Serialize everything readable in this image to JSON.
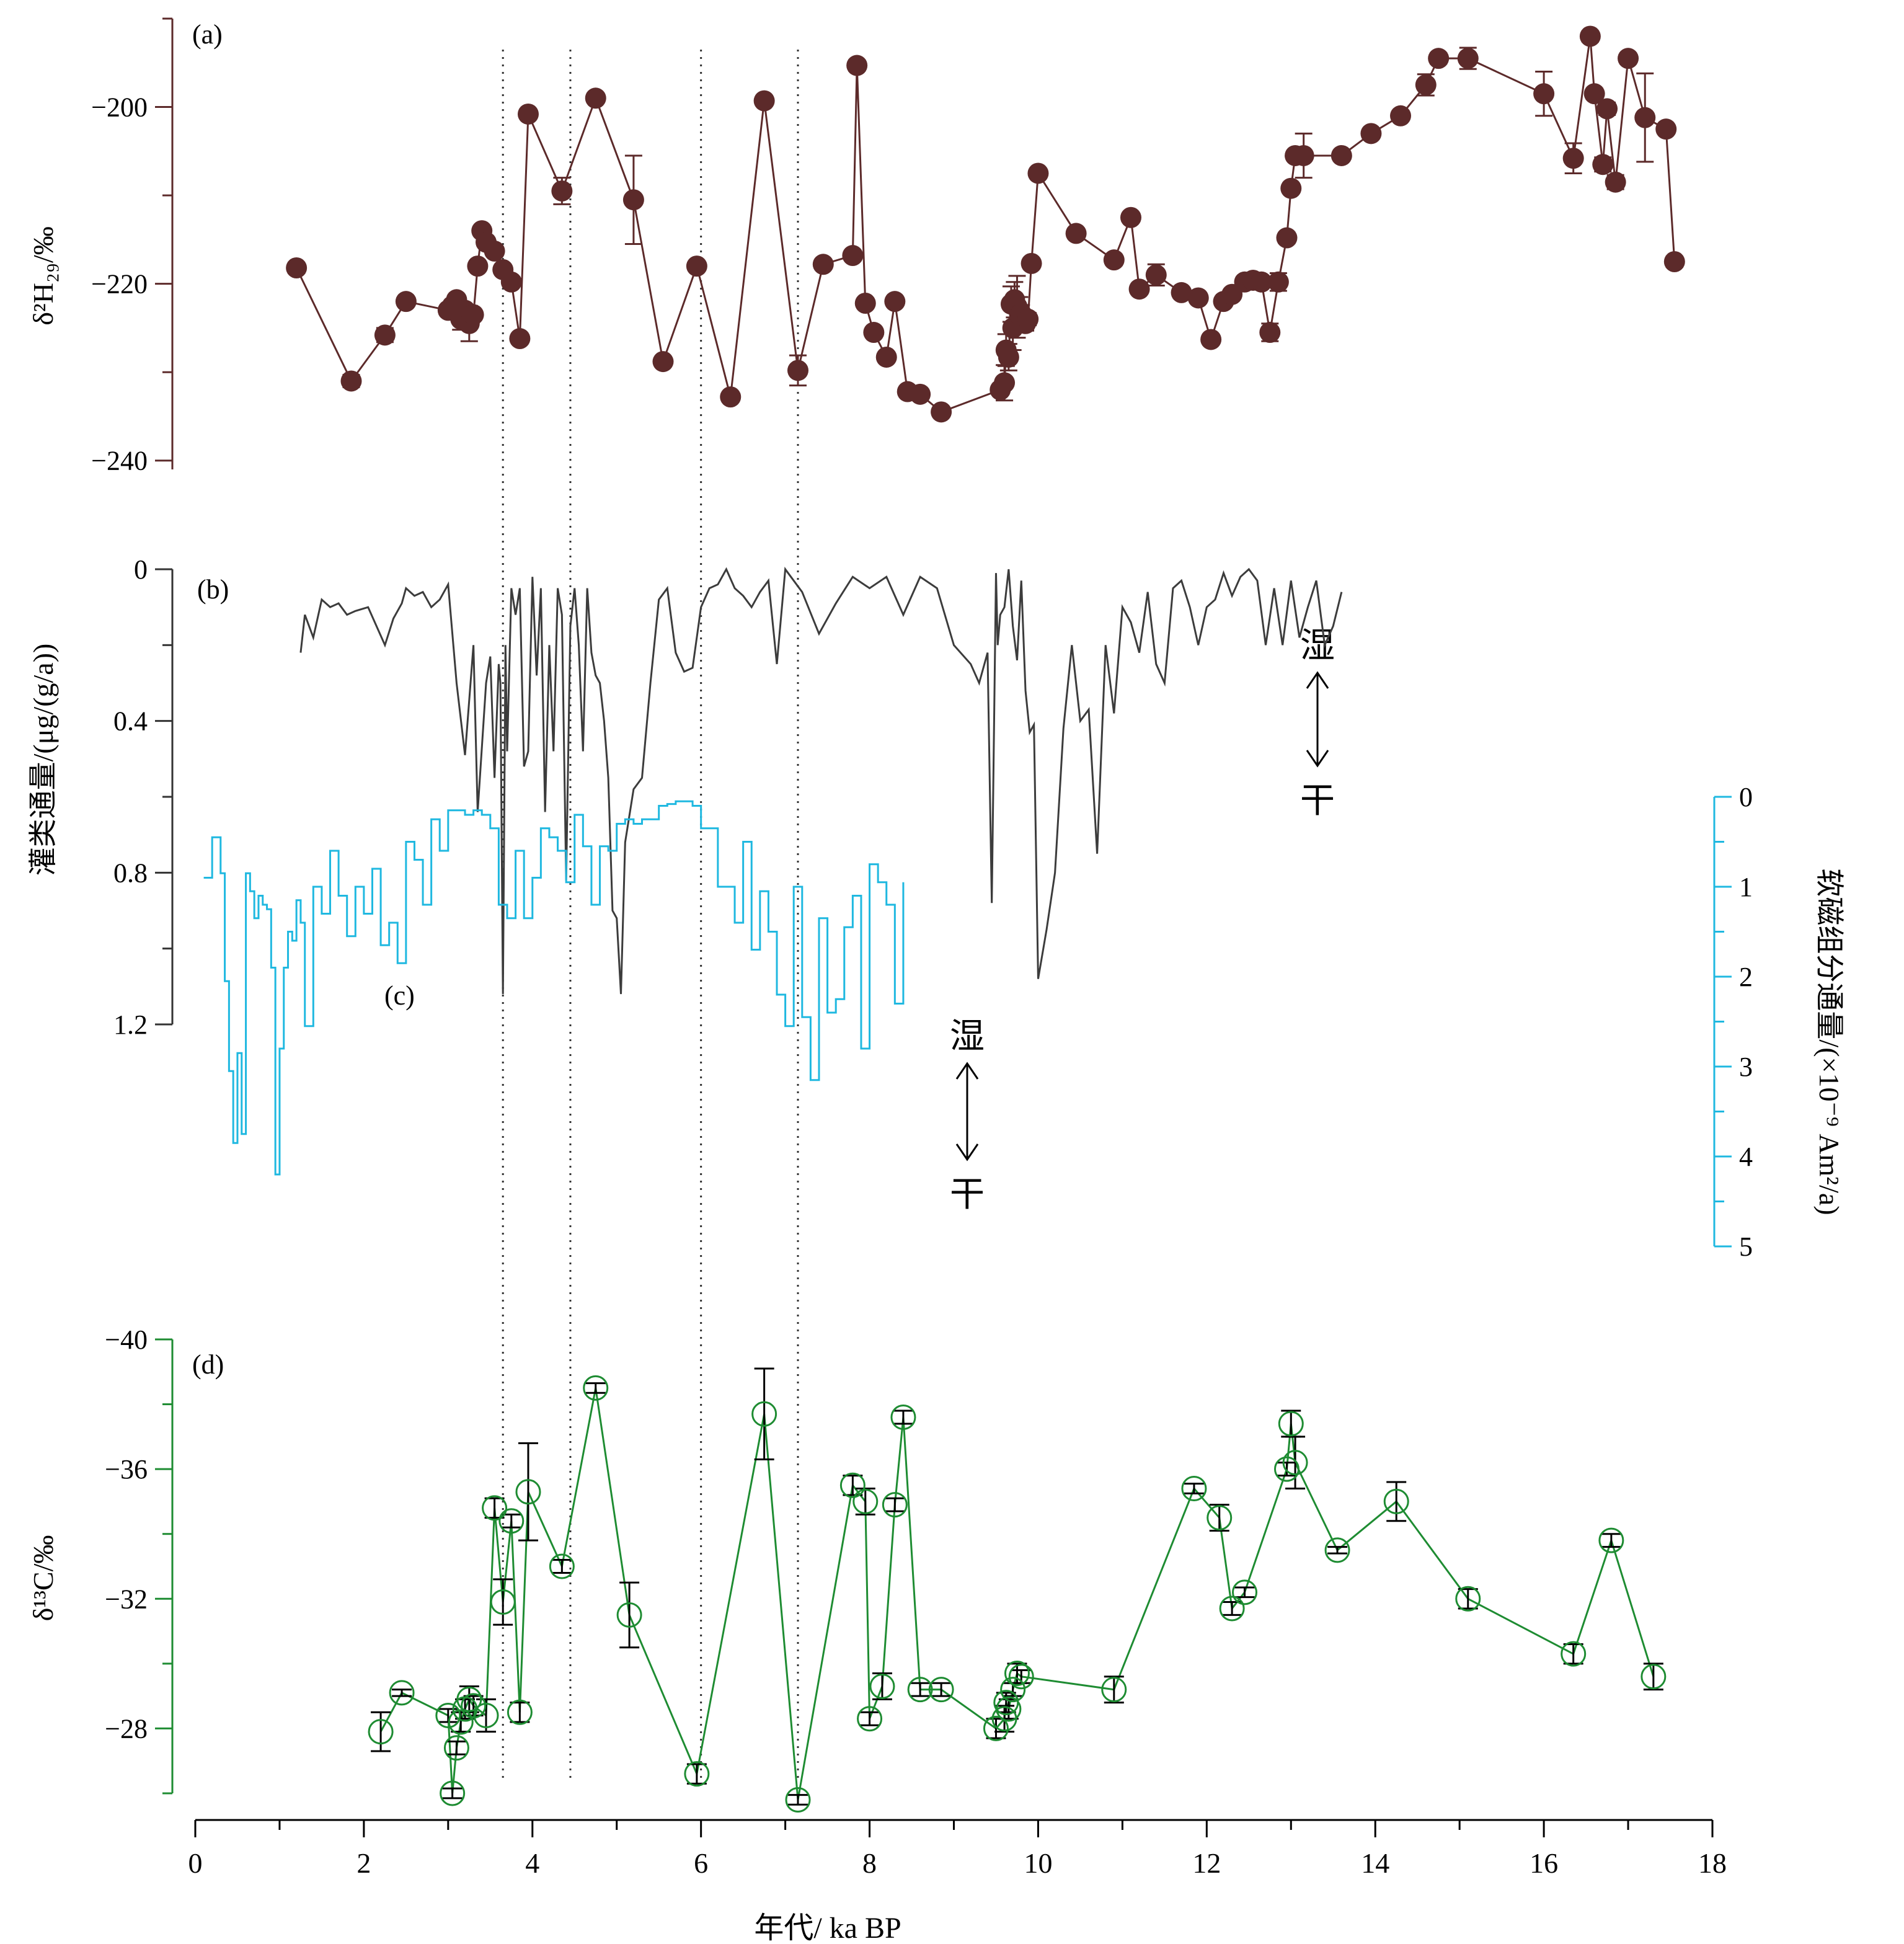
{
  "colors": {
    "a": "#5c2a2a",
    "b": "#3c3c3c",
    "c": "#1fb8e0",
    "d": "#1e8c32",
    "axis": "#000000"
  },
  "chart_data": [
    {
      "id": "a",
      "type": "scatter",
      "panel_label": "(a)",
      "ylabel": "δ²H₂₉/‰",
      "ylim": [
        -190,
        -241
      ],
      "yticks": [
        -240,
        -220,
        -200
      ],
      "x": [
        1.2,
        1.85,
        2.25,
        2.5,
        3.0,
        3.05,
        3.1,
        3.15,
        3.2,
        3.25,
        3.3,
        3.35,
        3.4,
        3.45,
        3.55,
        3.65,
        3.75,
        3.85,
        3.95,
        4.35,
        4.75,
        5.2,
        5.55,
        5.95,
        6.35,
        6.75,
        7.15,
        7.45,
        7.8,
        7.85,
        7.95,
        8.05,
        8.2,
        8.3,
        8.45,
        8.6,
        8.85,
        9.55,
        9.6,
        9.62,
        9.65,
        9.68,
        9.7,
        9.72,
        9.75,
        9.78,
        9.8,
        9.85,
        9.88,
        9.92,
        10.0,
        10.45,
        10.9,
        11.1,
        11.2,
        11.4,
        11.7,
        11.9,
        12.05,
        12.2,
        12.3,
        12.45,
        12.55,
        12.65,
        12.75,
        12.85,
        12.95,
        13.0,
        13.05,
        13.15,
        13.6,
        13.95,
        14.3,
        14.6,
        14.75,
        15.1,
        16.0,
        16.35,
        16.55,
        16.6,
        16.7,
        16.75,
        16.85,
        17.0,
        17.2,
        17.45,
        17.55
      ],
      "y": [
        -218.2,
        -231,
        -225.8,
        -222,
        -223,
        -222.5,
        -221.8,
        -224,
        -223,
        -224.5,
        -223.5,
        -218,
        -214,
        -215.3,
        -216.3,
        -218.4,
        -219.8,
        -226.2,
        -200.8,
        -209.5,
        -199,
        -210.5,
        -228.8,
        -218,
        -232.8,
        -199.3,
        -229.8,
        -217.8,
        -216.8,
        -195.3,
        -222.2,
        -225.5,
        -228.3,
        -222,
        -232.2,
        -232.5,
        -234.5,
        -232,
        -231.2,
        -227.5,
        -228.3,
        -222.3,
        -225,
        -221.8,
        -222.6,
        -223.5,
        -223.4,
        -224.5,
        -224,
        -217.7,
        -207.5,
        -214.3,
        -217.3,
        -212.5,
        -220.6,
        -219,
        -221,
        -221.6,
        -226.3,
        -222,
        -221.2,
        -219.8,
        -219.6,
        -219.8,
        -225.5,
        -219.8,
        -214.8,
        -209.2,
        -205.5,
        -205.5,
        -205.5,
        -203,
        -201,
        -197.5,
        -194.5,
        -194.5,
        -198.5,
        -205.8,
        -192,
        -198.5,
        -206.5,
        -200.2,
        -208.5,
        -194.5,
        -201.2,
        -202.5,
        -217.5
      ]
    },
    {
      "id": "b",
      "type": "line",
      "panel_label": "(b)",
      "ylabel": "灌类通量/(μg/(g/a))",
      "ylim": [
        0,
        1.2
      ],
      "yticks": [
        0,
        0.4,
        0.8,
        1.2
      ],
      "annotation_top": "湿",
      "annotation_bottom": "干",
      "x": [
        1.25,
        1.3,
        1.4,
        1.5,
        1.6,
        1.7,
        1.8,
        1.9,
        2.05,
        2.25,
        2.35,
        2.45,
        2.5,
        2.6,
        2.7,
        2.8,
        2.9,
        3.0,
        3.1,
        3.2,
        3.3,
        3.35,
        3.45,
        3.5,
        3.55,
        3.6,
        3.62,
        3.65,
        3.68,
        3.7,
        3.75,
        3.8,
        3.85,
        3.9,
        3.95,
        4.0,
        4.05,
        4.1,
        4.15,
        4.2,
        4.25,
        4.3,
        4.35,
        4.4,
        4.45,
        4.5,
        4.55,
        4.6,
        4.65,
        4.7,
        4.75,
        4.8,
        4.85,
        4.9,
        4.95,
        5.0,
        5.05,
        5.1,
        5.2,
        5.3,
        5.4,
        5.5,
        5.6,
        5.7,
        5.8,
        5.9,
        6.0,
        6.1,
        6.2,
        6.3,
        6.4,
        6.5,
        6.6,
        6.7,
        6.8,
        6.9,
        7.0,
        7.2,
        7.4,
        7.6,
        7.8,
        8.0,
        8.2,
        8.4,
        8.6,
        8.8,
        9.0,
        9.2,
        9.3,
        9.4,
        9.45,
        9.5,
        9.52,
        9.55,
        9.6,
        9.65,
        9.7,
        9.75,
        9.8,
        9.85,
        9.9,
        9.95,
        10.0,
        10.1,
        10.2,
        10.3,
        10.4,
        10.5,
        10.6,
        10.7,
        10.8,
        10.9,
        11.0,
        11.1,
        11.2,
        11.3,
        11.4,
        11.5,
        11.6,
        11.7,
        11.8,
        11.9,
        12.0,
        12.1,
        12.2,
        12.3,
        12.4,
        12.5,
        12.6,
        12.7,
        12.8,
        12.9,
        13.0,
        13.1,
        13.2,
        13.3,
        13.4,
        13.5,
        13.6
      ],
      "y": [
        0.22,
        0.12,
        0.18,
        0.08,
        0.1,
        0.09,
        0.12,
        0.11,
        0.1,
        0.2,
        0.13,
        0.09,
        0.05,
        0.07,
        0.06,
        0.1,
        0.08,
        0.04,
        0.3,
        0.49,
        0.2,
        0.64,
        0.3,
        0.23,
        0.55,
        0.25,
        0.3,
        1.12,
        0.2,
        0.48,
        0.05,
        0.12,
        0.05,
        0.52,
        0.48,
        0.02,
        0.28,
        0.05,
        0.64,
        0.2,
        0.48,
        0.05,
        0.12,
        0.82,
        0.15,
        0.05,
        0.2,
        0.48,
        0.05,
        0.22,
        0.28,
        0.3,
        0.4,
        0.55,
        0.9,
        0.92,
        1.12,
        0.72,
        0.58,
        0.55,
        0.3,
        0.08,
        0.05,
        0.22,
        0.27,
        0.26,
        0.1,
        0.05,
        0.04,
        0.0,
        0.05,
        0.07,
        0.1,
        0.06,
        0.03,
        0.25,
        0.0,
        0.06,
        0.17,
        0.09,
        0.02,
        0.05,
        0.02,
        0.12,
        0.02,
        0.05,
        0.2,
        0.25,
        0.3,
        0.22,
        0.88,
        0.01,
        0.2,
        0.12,
        0.1,
        0.0,
        0.15,
        0.24,
        0.03,
        0.32,
        0.43,
        0.41,
        1.08,
        0.95,
        0.8,
        0.42,
        0.2,
        0.4,
        0.37,
        0.75,
        0.2,
        0.38,
        0.1,
        0.14,
        0.22,
        0.06,
        0.25,
        0.3,
        0.05,
        0.03,
        0.1,
        0.2,
        0.1,
        0.08,
        0.01,
        0.07,
        0.02,
        0.0,
        0.03,
        0.2,
        0.05,
        0.2,
        0.03,
        0.18,
        0.1,
        0.03,
        0.2,
        0.15,
        0.06
      ],
      "x_note_range": [
        1.2,
        12.9
      ]
    },
    {
      "id": "c",
      "type": "line",
      "panel_label": "(c)",
      "ylabel": "软磁组分通量/(×10⁻⁹ Am²/a)",
      "ylim": [
        0,
        5
      ],
      "yticks": [
        0,
        1,
        2,
        3,
        4,
        5
      ],
      "annotation_top": "湿",
      "annotation_bottom": "干",
      "x": [
        0.1,
        0.2,
        0.3,
        0.35,
        0.4,
        0.45,
        0.5,
        0.55,
        0.6,
        0.65,
        0.7,
        0.75,
        0.8,
        0.85,
        0.9,
        0.95,
        1.0,
        1.05,
        1.1,
        1.15,
        1.2,
        1.25,
        1.3,
        1.4,
        1.5,
        1.6,
        1.7,
        1.8,
        1.9,
        2.0,
        2.1,
        2.2,
        2.3,
        2.4,
        2.5,
        2.6,
        2.7,
        2.8,
        2.9,
        3.0,
        3.1,
        3.2,
        3.3,
        3.4,
        3.5,
        3.6,
        3.7,
        3.8,
        3.9,
        4.0,
        4.1,
        4.2,
        4.3,
        4.4,
        4.5,
        4.6,
        4.7,
        4.8,
        4.9,
        5.0,
        5.1,
        5.2,
        5.3,
        5.4,
        5.5,
        5.6,
        5.7,
        5.8,
        5.9,
        6.0,
        6.2,
        6.4,
        6.5,
        6.6,
        6.7,
        6.8,
        6.9,
        7.0,
        7.1,
        7.2,
        7.3,
        7.4,
        7.5,
        7.6,
        7.7,
        7.8,
        7.9,
        8.0,
        8.1,
        8.2,
        8.3,
        8.4
      ],
      "y": [
        0.9,
        0.45,
        0.85,
        2.05,
        3.05,
        3.85,
        2.85,
        3.75,
        0.85,
        1.05,
        1.35,
        1.1,
        1.2,
        1.25,
        1.9,
        4.2,
        2.8,
        1.9,
        1.5,
        1.6,
        1.15,
        1.4,
        2.55,
        1.0,
        1.3,
        0.6,
        1.1,
        1.55,
        1.0,
        1.3,
        0.8,
        1.65,
        1.4,
        1.85,
        0.5,
        0.7,
        1.2,
        0.25,
        0.6,
        0.15,
        0.15,
        0.2,
        0.15,
        0.2,
        0.35,
        1.2,
        1.35,
        0.6,
        1.35,
        0.9,
        0.35,
        0.45,
        0.6,
        0.95,
        0.2,
        0.55,
        1.2,
        0.55,
        0.6,
        0.3,
        0.25,
        0.3,
        0.25,
        0.25,
        0.1,
        0.08,
        0.05,
        0.05,
        0.1,
        0.35,
        1.0,
        1.4,
        0.5,
        1.7,
        1.05,
        1.5,
        2.2,
        2.55,
        1.0,
        2.45,
        3.15,
        1.35,
        2.4,
        2.25,
        1.45,
        1.1,
        2.8,
        0.75,
        0.95,
        1.2,
        2.3,
        0.95
      ],
      "x_note_range": [
        0.1,
        8.4
      ]
    },
    {
      "id": "d",
      "type": "scatter",
      "panel_label": "(d)",
      "ylabel": "δ¹³C/‰",
      "ylim": [
        -40,
        -26
      ],
      "yticks": [
        -28,
        -32,
        -36,
        -40
      ],
      "x": [
        2.2,
        2.45,
        3.0,
        3.05,
        3.1,
        3.15,
        3.2,
        3.25,
        3.3,
        3.45,
        3.55,
        3.65,
        3.75,
        3.85,
        3.95,
        4.35,
        4.75,
        5.15,
        5.95,
        6.75,
        7.15,
        7.8,
        7.95,
        8.0,
        8.15,
        8.3,
        8.4,
        8.6,
        8.85,
        9.5,
        9.6,
        9.62,
        9.65,
        9.7,
        9.75,
        9.8,
        10.9,
        11.85,
        12.15,
        12.3,
        12.45,
        12.95,
        13.0,
        13.05,
        13.55,
        14.25,
        15.1,
        16.35,
        16.8,
        17.3
      ],
      "y": [
        -27.9,
        -29.1,
        -28.4,
        -26.0,
        -27.4,
        -28.2,
        -28.6,
        -28.9,
        -28.7,
        -28.4,
        -34.8,
        -31.9,
        -34.4,
        -28.5,
        -35.3,
        -33.0,
        -38.5,
        -31.5,
        -26.6,
        -37.7,
        -25.8,
        -35.5,
        -35.0,
        -28.3,
        -29.3,
        -34.9,
        -37.6,
        -29.2,
        -29.2,
        -28.0,
        -28.3,
        -28.8,
        -28.6,
        -29.2,
        -29.7,
        -29.6,
        -29.2,
        -35.4,
        -34.5,
        -31.7,
        -32.2,
        -36.0,
        -37.4,
        -36.2,
        -33.5,
        -35.0,
        -32.0,
        -30.3,
        -33.8,
        -29.6
      ],
      "err": [
        0.6,
        0.1,
        0.2,
        0.15,
        0.2,
        0.3,
        0.3,
        0.4,
        0.3,
        0.5,
        0.3,
        0.7,
        0.2,
        0.3,
        1.5,
        0.2,
        0.15,
        1.0,
        0.3,
        1.4,
        0.15,
        0.3,
        0.4,
        0.2,
        0.4,
        0.2,
        0.2,
        0.2,
        0.2,
        0.3,
        0.4,
        0.3,
        0.3,
        0.2,
        0.3,
        0.2,
        0.4,
        0.15,
        0.4,
        0.2,
        0.15,
        0.2,
        0.4,
        0.8,
        0.1,
        0.6,
        0.3,
        0.3,
        0.2,
        0.4
      ]
    }
  ],
  "a_err": [
    0.6,
    0.7,
    0.8,
    0.2,
    0.2,
    0.2,
    0.3,
    1.2,
    0.5,
    2.0,
    0.5,
    0.3,
    0.2,
    0.2,
    0.3,
    0.2,
    0.3,
    0.2,
    0.2,
    1.5,
    0.3,
    5.0,
    0.4,
    0.5,
    0.3,
    0.4,
    1.7,
    0.2,
    0.4,
    0.6,
    0.3,
    0.3,
    0.4,
    0.3,
    0.3,
    0.5,
    0.5,
    0.3,
    2.0,
    1.8,
    1.5,
    2.0,
    2.5,
    2.0,
    3.5,
    2.0,
    1.0,
    0.8,
    0.7,
    0.5,
    0.3,
    0.3,
    0.6,
    0.5,
    0.3,
    1.2,
    0.4,
    0.3,
    0.5,
    0.3,
    0.4,
    0.6,
    0.5,
    0.6,
    1.0,
    1.0,
    0.6,
    0.4,
    0.5,
    2.5,
    0.3,
    0.4,
    0.3,
    1.2,
    0.6,
    1.2,
    2.5,
    1.7,
    0.6,
    0.6,
    0.8,
    0.7,
    0.8,
    0.6,
    5.0,
    0.3,
    0.6
  ],
  "x_axis": {
    "label": "年代/ ka BP",
    "range": [
      0,
      18
    ],
    "ticks": [
      "0",
      "2",
      "4",
      "6",
      "8",
      "10",
      "12",
      "14",
      "16",
      "18"
    ]
  },
  "vertical_markers": [
    3.65,
    4.45,
    6.0,
    7.15
  ]
}
